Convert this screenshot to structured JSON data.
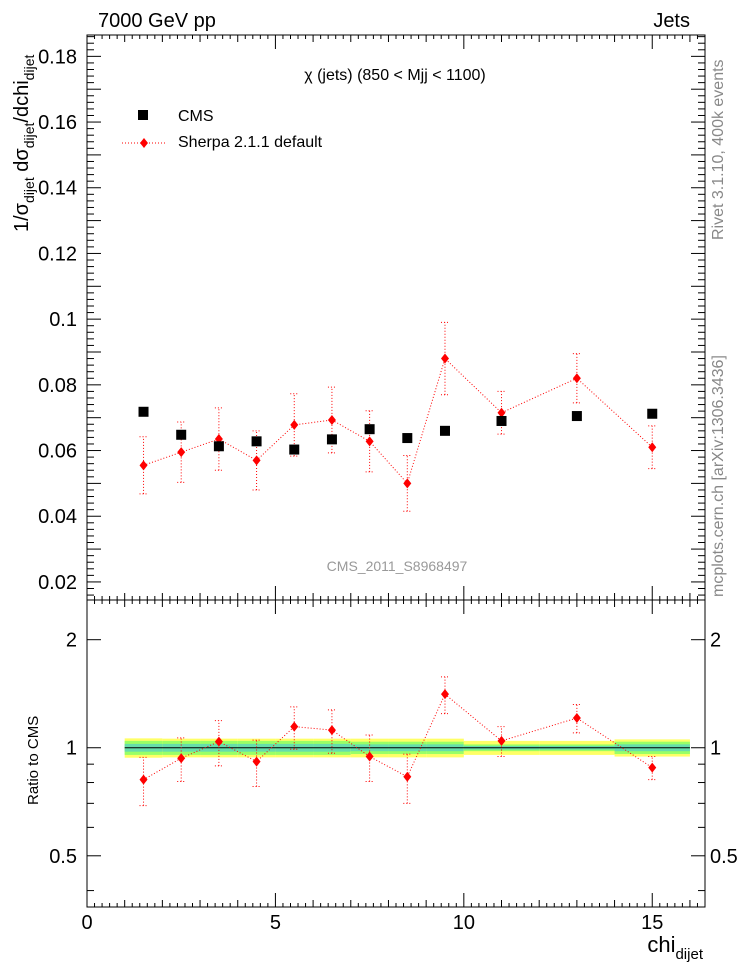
{
  "header": {
    "left": "7000 GeV pp",
    "right": "Jets"
  },
  "side_text": {
    "rivet": "Rivet 3.1.10,  400k events",
    "mcplots": "mcplots.cern.ch [arXiv:1306.3436]"
  },
  "chart_data": {
    "type": "scatter",
    "title": "χ (jets) (850 < Mjj < 1100)",
    "watermark": "CMS_2011_S8968497",
    "ylabel_main": {
      "prefix": "1/σ",
      "sub1": "dijet",
      "mid": " dσ",
      "sub2": "dijet",
      "suffix": "/dchi",
      "sub3": "dijet"
    },
    "ylabel_ratio": "Ratio to CMS",
    "xlabel": {
      "base": "chi",
      "sub": "dijet"
    },
    "xlim": [
      0,
      16.4
    ],
    "ylim_main": [
      0.0145,
      0.1865
    ],
    "ylim_ratio": [
      0.36,
      2.58
    ],
    "ratio_log_scale": true,
    "x_ticks": [
      "0",
      "5",
      "10",
      "15"
    ],
    "y_ticks_main": [
      "0.02",
      "0.04",
      "0.06",
      "0.08",
      "0.1",
      "0.12",
      "0.14",
      "0.16",
      "0.18"
    ],
    "y_ticks_ratio": [
      "0.5",
      "1",
      "2"
    ],
    "legend_position": "top-left",
    "series": [
      {
        "name": "CMS",
        "marker": "square",
        "color": "#000000",
        "x": [
          1.5,
          2.5,
          3.5,
          4.5,
          5.5,
          6.5,
          7.5,
          8.5,
          9.5,
          11,
          13,
          15
        ],
        "y": [
          0.0718,
          0.0648,
          0.0613,
          0.0628,
          0.0603,
          0.0634,
          0.0665,
          0.0638,
          0.066,
          0.069,
          0.0705,
          0.0712
        ],
        "band_x": [
          [
            1,
            2
          ],
          [
            2,
            3
          ],
          [
            3,
            4
          ],
          [
            4,
            5
          ],
          [
            5,
            6
          ],
          [
            6,
            7
          ],
          [
            7,
            8
          ],
          [
            8,
            9
          ],
          [
            9,
            10
          ],
          [
            10,
            12
          ],
          [
            12,
            14
          ],
          [
            14,
            16
          ]
        ],
        "band_inner": [
          0.025,
          0.025,
          0.025,
          0.025,
          0.025,
          0.025,
          0.022,
          0.022,
          0.022,
          0.012,
          0.012,
          0.022
        ],
        "band_outer": [
          0.062,
          0.06,
          0.06,
          0.06,
          0.06,
          0.06,
          0.06,
          0.06,
          0.06,
          0.045,
          0.045,
          0.055
        ]
      },
      {
        "name": "Sherpa 2.1.1 default",
        "marker": "diamond",
        "color": "#ff0000",
        "x": [
          1.5,
          2.5,
          3.5,
          4.5,
          5.5,
          6.5,
          7.5,
          8.5,
          9.5,
          11,
          13,
          15
        ],
        "y": [
          0.0555,
          0.0595,
          0.0635,
          0.057,
          0.0678,
          0.0693,
          0.0628,
          0.05,
          0.088,
          0.0715,
          0.082,
          0.061
        ],
        "yerr": [
          0.0087,
          0.0092,
          0.0095,
          0.009,
          0.0095,
          0.01,
          0.0093,
          0.0085,
          0.011,
          0.0065,
          0.0075,
          0.0065
        ],
        "ratio": [
          0.815,
          0.935,
          1.04,
          0.915,
          1.145,
          1.12,
          0.945,
          0.83,
          1.41,
          1.045,
          1.21,
          0.88
        ],
        "ratio_err": [
          0.125,
          0.13,
          0.15,
          0.135,
          0.155,
          0.155,
          0.14,
          0.13,
          0.165,
          0.1,
          0.11,
          0.065
        ]
      }
    ]
  }
}
